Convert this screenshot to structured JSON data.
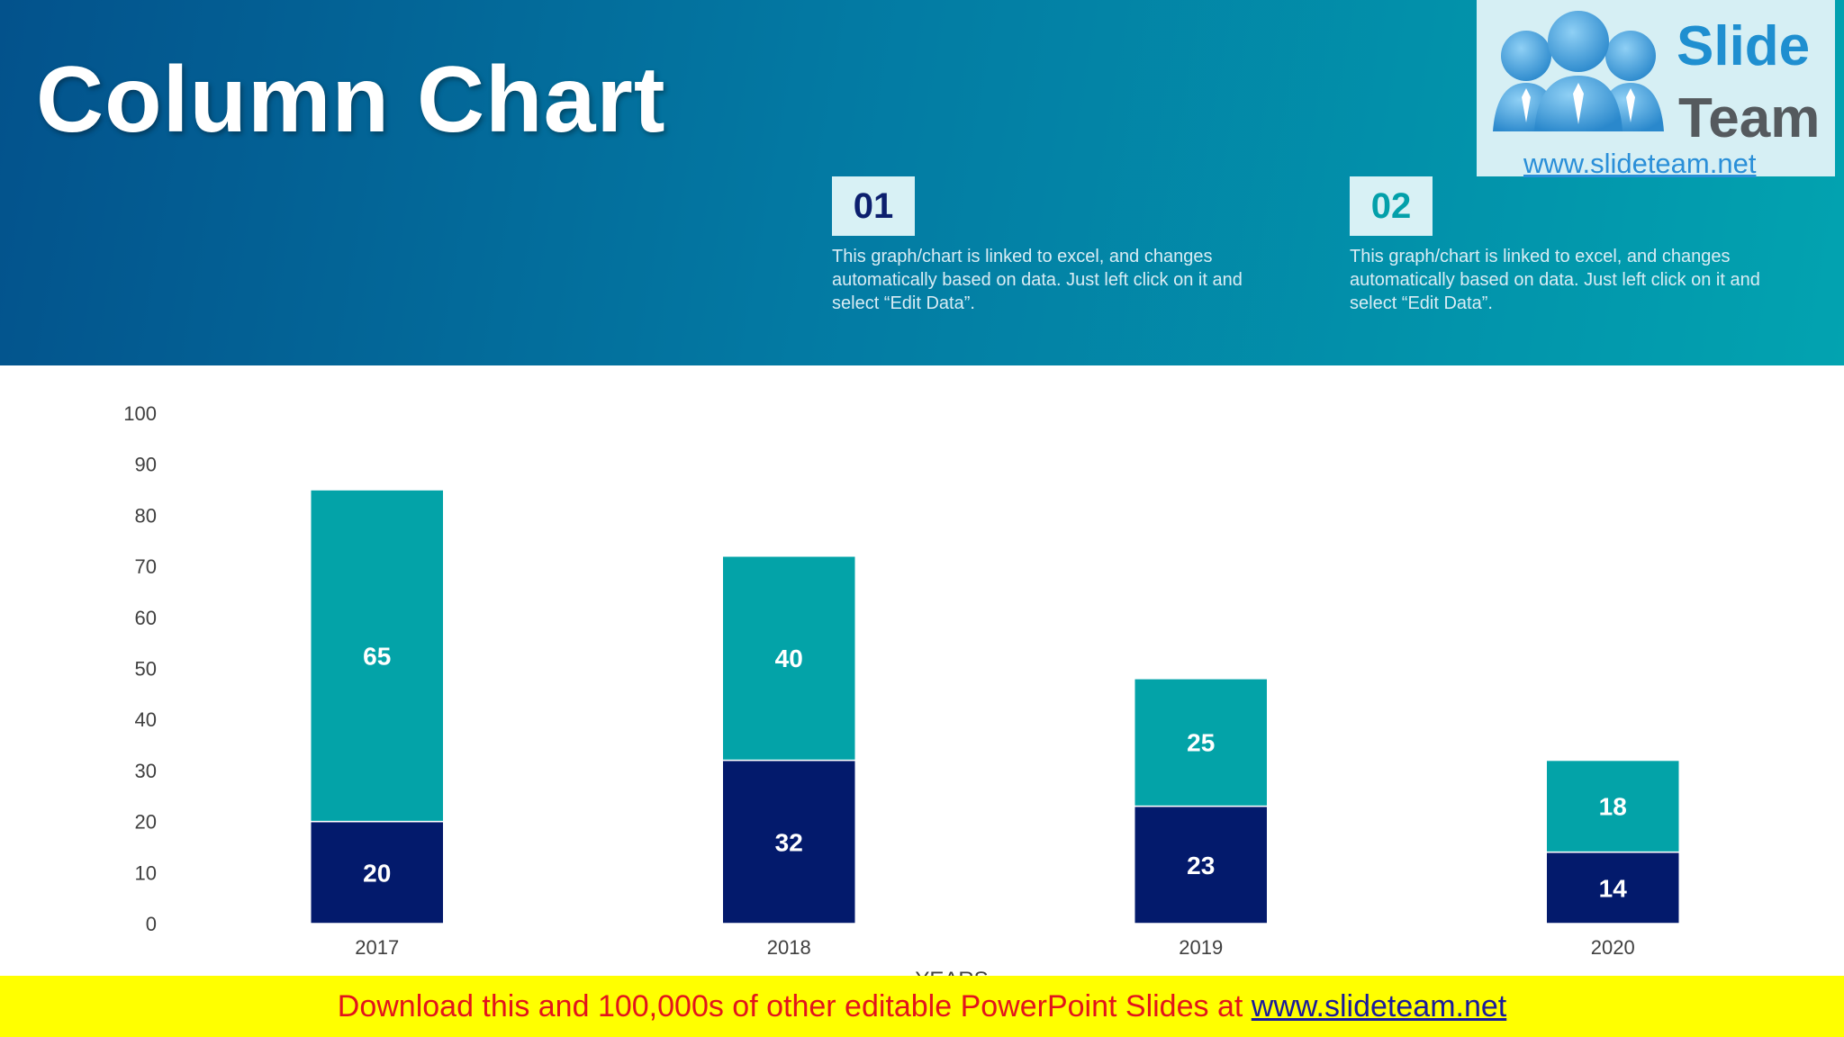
{
  "slide": {
    "title": "Column Chart"
  },
  "notes": [
    {
      "number": "01",
      "text": "This graph/chart is linked to excel, and changes automatically based on data. Just left click on it and select “Edit Data”.",
      "number_color": "#0c1f6e"
    },
    {
      "number": "02",
      "text": "This graph/chart is linked to excel, and changes automatically based on data. Just left click on it and select “Edit Data”.",
      "number_color": "#03a0aa"
    }
  ],
  "logo": {
    "word1": "Slide",
    "word2": "Team",
    "url": "www.slideteam.net"
  },
  "footer": {
    "text": "Download this and 100,000s of other editable PowerPoint Slides at ",
    "link": "www.slideteam.net"
  },
  "chart_data": {
    "type": "bar",
    "stacked": true,
    "categories": [
      "2017",
      "2018",
      "2019",
      "2020"
    ],
    "series": [
      {
        "name": "",
        "values": [
          20,
          32,
          23,
          14
        ],
        "color": "#031a6c"
      },
      {
        "name": "",
        "values": [
          65,
          40,
          25,
          18
        ],
        "color": "#03a3a8"
      }
    ],
    "ylim": [
      0,
      100
    ],
    "yticks": [
      0,
      10,
      20,
      30,
      40,
      50,
      60,
      70,
      80,
      90,
      100
    ],
    "xlabel": "YEARS",
    "ylabel": "",
    "grid": false,
    "data_labels": true
  }
}
